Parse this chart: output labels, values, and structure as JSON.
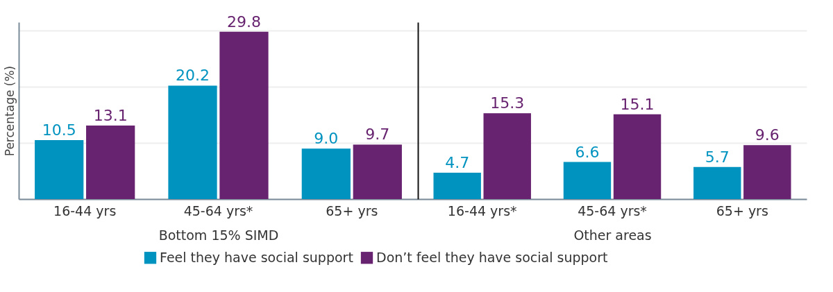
{
  "chart_data": [
    {
      "type": "bar",
      "xlabel": "Bottom 15% SIMD",
      "ylabel": "Percentage (%)",
      "categories": [
        "16-44 yrs",
        "45-64 yrs*",
        "65+ yrs"
      ],
      "series": [
        {
          "name": "Feel they have social support",
          "color": "#0093c0",
          "values": [
            10.5,
            20.2,
            9.0
          ],
          "value_labels": [
            "10.5",
            "20.2",
            "9.0"
          ]
        },
        {
          "name": "Don’t feel they have social support",
          "color": "#67236f",
          "values": [
            13.1,
            29.8,
            9.7
          ]
        }
      ],
      "ylim": [
        0,
        31.5
      ],
      "yticks": [
        {
          "value": 0,
          "label": null
        },
        {
          "value": 10,
          "label": null
        },
        {
          "value": 20,
          "label": null
        },
        {
          "value": 30,
          "label": null
        }
      ],
      "data_labels": true,
      "grid": "y",
      "tick_labels": "x",
      "legend": "bottom"
    },
    {
      "type": "bar",
      "xlabel": "Other areas",
      "categories": [
        "16-44 yrs*",
        "45-64 yrs*",
        "65+ yrs"
      ],
      "series": [
        {
          "name": "Feel they have social support",
          "color": "#0093c0",
          "values": [
            4.7,
            6.6,
            5.7
          ]
        },
        {
          "name": "Don’t feel they have social support",
          "color": "#67236f",
          "values": [
            15.3,
            15.1,
            9.6
          ]
        }
      ],
      "ylim": [
        0,
        31.5
      ],
      "yticks": [
        {
          "value": 0,
          "label": null
        },
        {
          "value": 10,
          "label": null
        },
        {
          "value": 20,
          "label": null
        },
        {
          "value": 30,
          "label": null
        }
      ],
      "data_labels": true,
      "grid": "y",
      "tick_labels": "x",
      "legend": "bottom"
    }
  ]
}
